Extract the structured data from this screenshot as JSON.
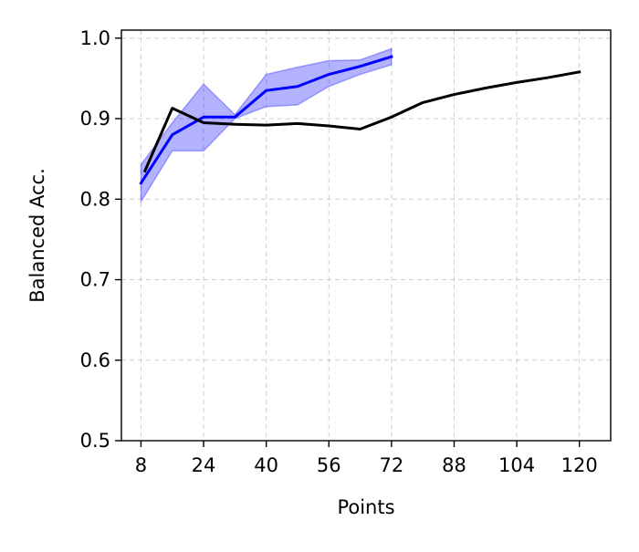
{
  "chart_data": {
    "type": "line",
    "xlabel": "Points",
    "ylabel": "Balanced Acc.",
    "xlim": [
      3,
      128
    ],
    "ylim": [
      0.5,
      1.01
    ],
    "x_ticks": [
      8,
      24,
      40,
      56,
      72,
      88,
      104,
      120
    ],
    "y_ticks": [
      0.5,
      0.6,
      0.7,
      0.8,
      0.9,
      1.0
    ],
    "y_tick_labels": [
      "0.5",
      "0.6",
      "0.7",
      "0.8",
      "0.9",
      "1.0"
    ],
    "grid": true,
    "series": [
      {
        "color": "#0000ff",
        "band_color": "#0000ff",
        "x": [
          8,
          16,
          24,
          32,
          40,
          48,
          56,
          64,
          72
        ],
        "y": [
          0.82,
          0.88,
          0.902,
          0.902,
          0.935,
          0.94,
          0.955,
          0.965,
          0.977
        ],
        "lower": [
          0.797,
          0.86,
          0.86,
          0.9,
          0.915,
          0.917,
          0.94,
          0.955,
          0.967
        ],
        "upper": [
          0.843,
          0.895,
          0.943,
          0.905,
          0.955,
          0.964,
          0.972,
          0.973,
          0.987
        ]
      },
      {
        "color": "#000000",
        "x": [
          9,
          16,
          24,
          32,
          40,
          48,
          56,
          64,
          72,
          80,
          88,
          96,
          104,
          112,
          120
        ],
        "y": [
          0.835,
          0.913,
          0.895,
          0.893,
          0.892,
          0.894,
          0.891,
          0.887,
          0.902,
          0.92,
          0.93,
          0.938,
          0.945,
          0.951,
          0.958
        ]
      }
    ]
  }
}
